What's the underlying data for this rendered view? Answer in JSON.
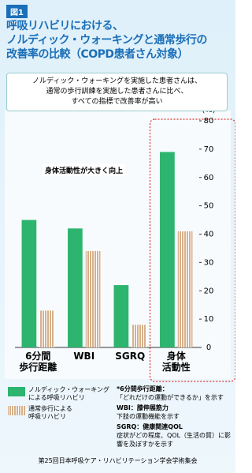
{
  "badge": "図1",
  "chart_data": {
    "type": "bar",
    "title": "呼吸リハビリにおける、\nノルディック・ウォーキングと通常歩行の\n改善率の比較（COPD患者さん対象）",
    "subtitle": "ノルディック・ウォーキングを実施した患者さんは、\n通常の歩行訓練を実施した患者さんに比べ、\nすべての指標で改善率が高い",
    "y_unit": "(%)",
    "annotation": "身体活動性が大きく向上",
    "categories": [
      "6分間\n歩行距離",
      "WBI",
      "SGRQ",
      "身体\n活動性"
    ],
    "series": [
      {
        "name": "ノルディック・ウォーキング\nによる呼吸リハビリ",
        "color": "#2db46e",
        "values": [
          45,
          42,
          22,
          69
        ]
      },
      {
        "name": "通常歩行による\n呼吸リハビリ",
        "color": "#d6b08a",
        "values": [
          13,
          34,
          8,
          41
        ]
      }
    ],
    "ylim": [
      0,
      80
    ],
    "yticks": [
      0,
      10,
      20,
      30,
      40,
      50,
      60,
      70,
      80
    ],
    "grid": false
  },
  "notes": [
    {
      "term": "*6分間歩行距離：",
      "desc": "「どれだけの運動ができるか」を示す"
    },
    {
      "term": "WBI：膝伸展筋力",
      "desc": "下肢の運動機能を示す"
    },
    {
      "term": "SGRQ：健康関連QOL",
      "desc": "症状がどの程度、QOL（生活の質）に影響を及ぼすかを示す"
    }
  ],
  "source": "第25回日本呼吸ケア・リハビリテーション学会学術集会"
}
